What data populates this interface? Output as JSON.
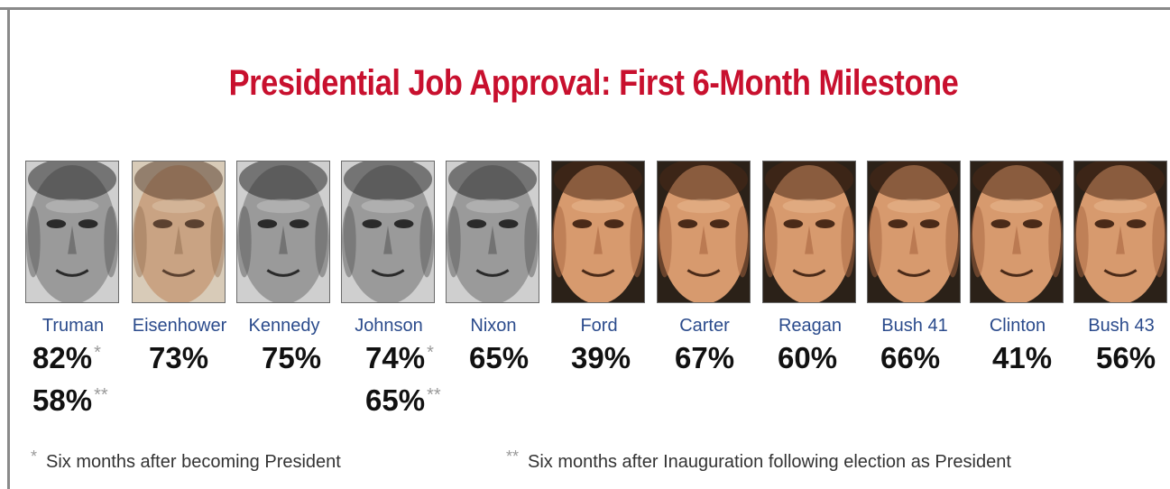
{
  "chart_data": {
    "type": "table",
    "title": "Presidential Job Approval: First 6-Month Milestone",
    "columns": [
      {
        "president": "Truman",
        "values": [
          {
            "value": 82,
            "label": "82%",
            "mark": "*"
          },
          {
            "value": 58,
            "label": "58%",
            "mark": "**"
          }
        ],
        "tone": "bw"
      },
      {
        "president": "Eisenhower",
        "values": [
          {
            "value": 73,
            "label": "73%",
            "mark": ""
          }
        ],
        "tone": "sepia"
      },
      {
        "president": "Kennedy",
        "values": [
          {
            "value": 75,
            "label": "75%",
            "mark": ""
          }
        ],
        "tone": "bw"
      },
      {
        "president": "Johnson",
        "values": [
          {
            "value": 74,
            "label": "74%",
            "mark": "*"
          },
          {
            "value": 65,
            "label": "65%",
            "mark": "**"
          }
        ],
        "tone": "bw"
      },
      {
        "president": "Nixon",
        "values": [
          {
            "value": 65,
            "label": "65%",
            "mark": ""
          }
        ],
        "tone": "bw"
      },
      {
        "president": "Ford",
        "values": [
          {
            "value": 39,
            "label": "39%",
            "mark": ""
          }
        ],
        "tone": "color"
      },
      {
        "president": "Carter",
        "values": [
          {
            "value": 67,
            "label": "67%",
            "mark": ""
          }
        ],
        "tone": "color"
      },
      {
        "president": "Reagan",
        "values": [
          {
            "value": 60,
            "label": "60%",
            "mark": ""
          }
        ],
        "tone": "color"
      },
      {
        "president": "Bush 41",
        "values": [
          {
            "value": 66,
            "label": "66%",
            "mark": ""
          }
        ],
        "tone": "color"
      },
      {
        "president": "Clinton",
        "values": [
          {
            "value": 41,
            "label": "41%",
            "mark": ""
          }
        ],
        "tone": "color"
      },
      {
        "president": "Bush 43",
        "values": [
          {
            "value": 56,
            "label": "56%",
            "mark": ""
          }
        ],
        "tone": "color"
      }
    ],
    "footnotes": [
      {
        "mark": "*",
        "text": "Six months after becoming President"
      },
      {
        "mark": "**",
        "text": "Six months after Inauguration following election as President"
      }
    ]
  },
  "colors": {
    "title": "#c8102e",
    "name": "#2b4b8c",
    "value": "#111111",
    "mark": "#9a9a9a"
  }
}
